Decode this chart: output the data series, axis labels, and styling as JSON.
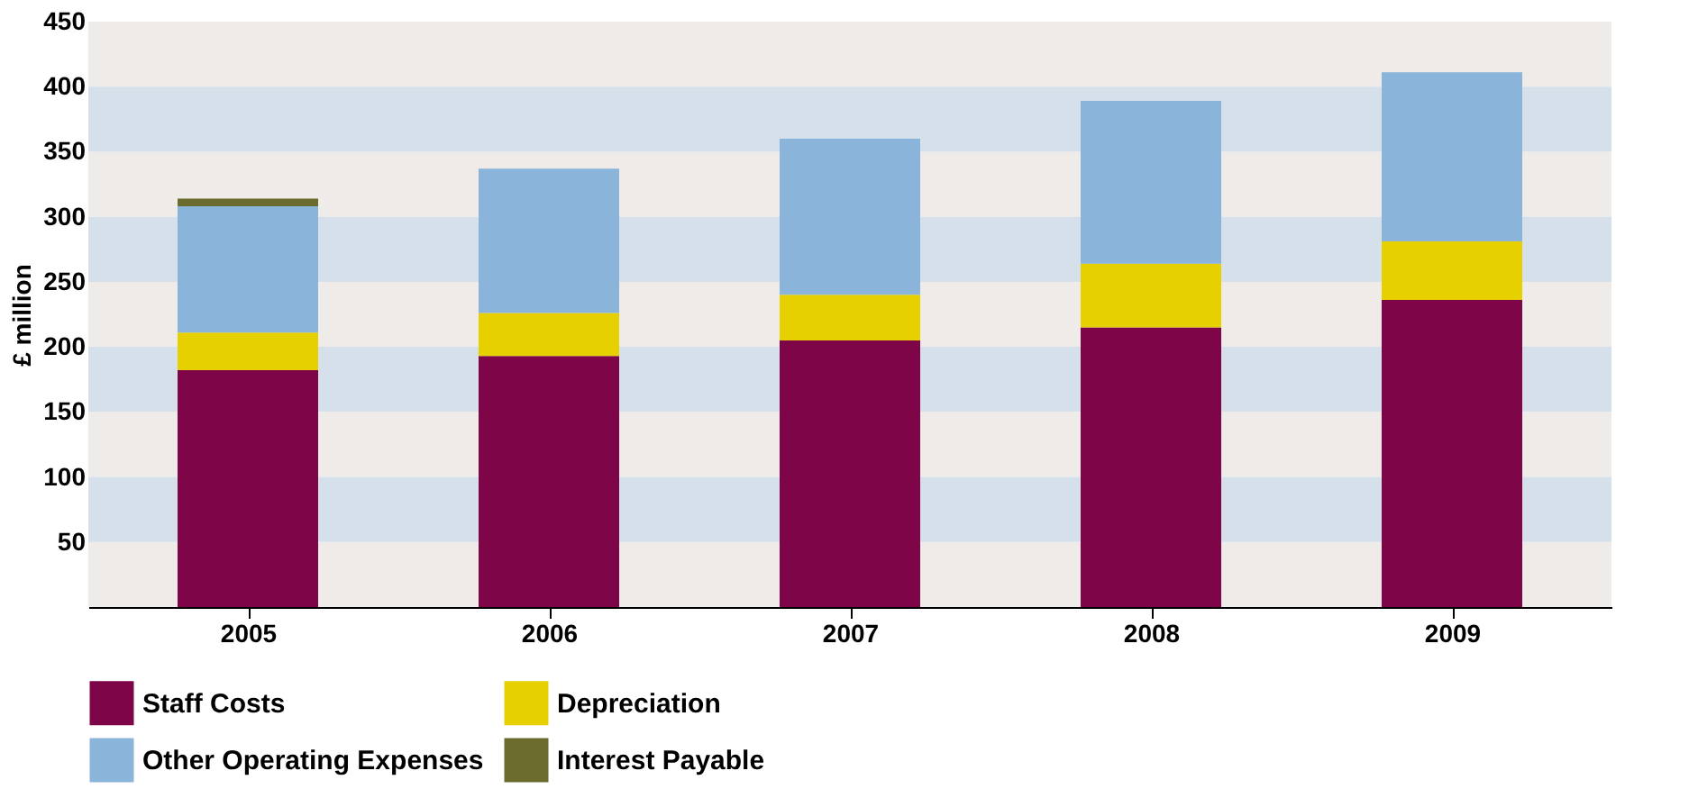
{
  "chart_data": {
    "type": "bar",
    "stacked": true,
    "ylabel": "£ million",
    "categories": [
      "2005",
      "2006",
      "2007",
      "2008",
      "2009"
    ],
    "series": [
      {
        "name": "Staff Costs",
        "color": "#7d0548",
        "values": [
          182,
          193,
          205,
          215,
          236
        ]
      },
      {
        "name": "Depreciation",
        "color": "#e6d000",
        "values": [
          29,
          33,
          35,
          49,
          45
        ]
      },
      {
        "name": "Other Operating Expenses",
        "color": "#8ab4da",
        "values": [
          97,
          111,
          120,
          125,
          130
        ]
      },
      {
        "name": "Interest Payable",
        "color": "#6b6b2e",
        "values": [
          6,
          0,
          0,
          0,
          0
        ]
      }
    ],
    "ylim": [
      0,
      450
    ],
    "yticks": [
      50,
      100,
      150,
      200,
      250,
      300,
      350,
      400,
      450
    ],
    "legend": "bottom"
  }
}
